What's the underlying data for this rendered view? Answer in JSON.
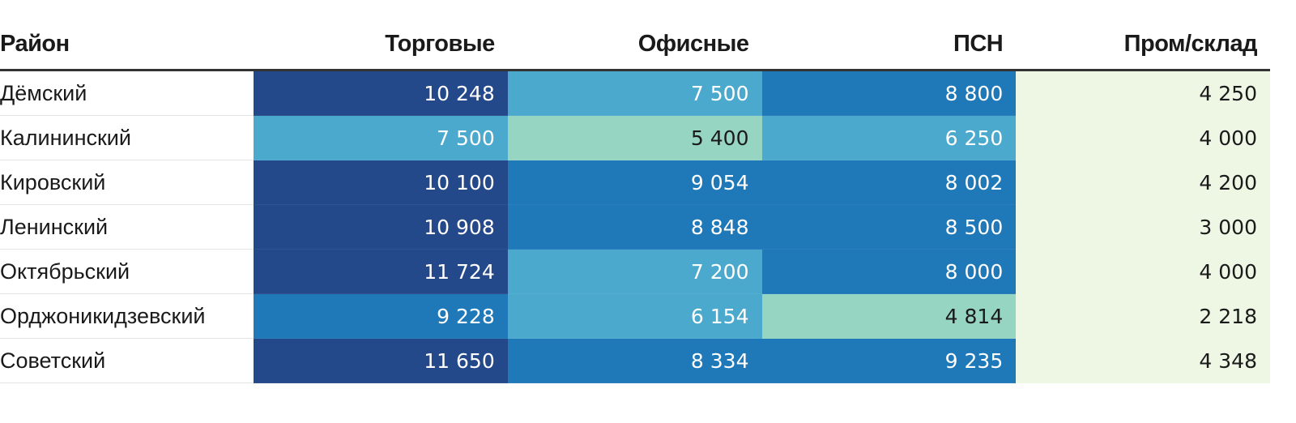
{
  "chart_data": {
    "type": "table",
    "columns": [
      "Район",
      "Торговые",
      "Офисные",
      "ПСН",
      "Пром/склад"
    ],
    "rows": [
      {
        "district": "Дёмский",
        "values": [
          "10 248",
          "7 500",
          "8 800",
          "4 250"
        ]
      },
      {
        "district": "Калининский",
        "values": [
          "7 500",
          "5 400",
          "6 250",
          "4 000"
        ]
      },
      {
        "district": "Кировский",
        "values": [
          "10 100",
          "9 054",
          "8 002",
          "4 200"
        ]
      },
      {
        "district": "Ленинский",
        "values": [
          "10 908",
          "8 848",
          "8 500",
          "3 000"
        ]
      },
      {
        "district": "Октябрьский",
        "values": [
          "11 724",
          "7 200",
          "8 000",
          "4 000"
        ]
      },
      {
        "district": "Орджоникидзевский",
        "values": [
          "9 228",
          "6 154",
          "4 814",
          "2 218"
        ]
      },
      {
        "district": "Советский",
        "values": [
          "11 650",
          "8 334",
          "9 235",
          "4 348"
        ]
      }
    ],
    "color_scale": {
      "light": "#eef7e4",
      "light_mid": "#96d5c1",
      "mid": "#4aa9cc",
      "dark_mid": "#1f79b8",
      "dark": "#24498a"
    }
  }
}
